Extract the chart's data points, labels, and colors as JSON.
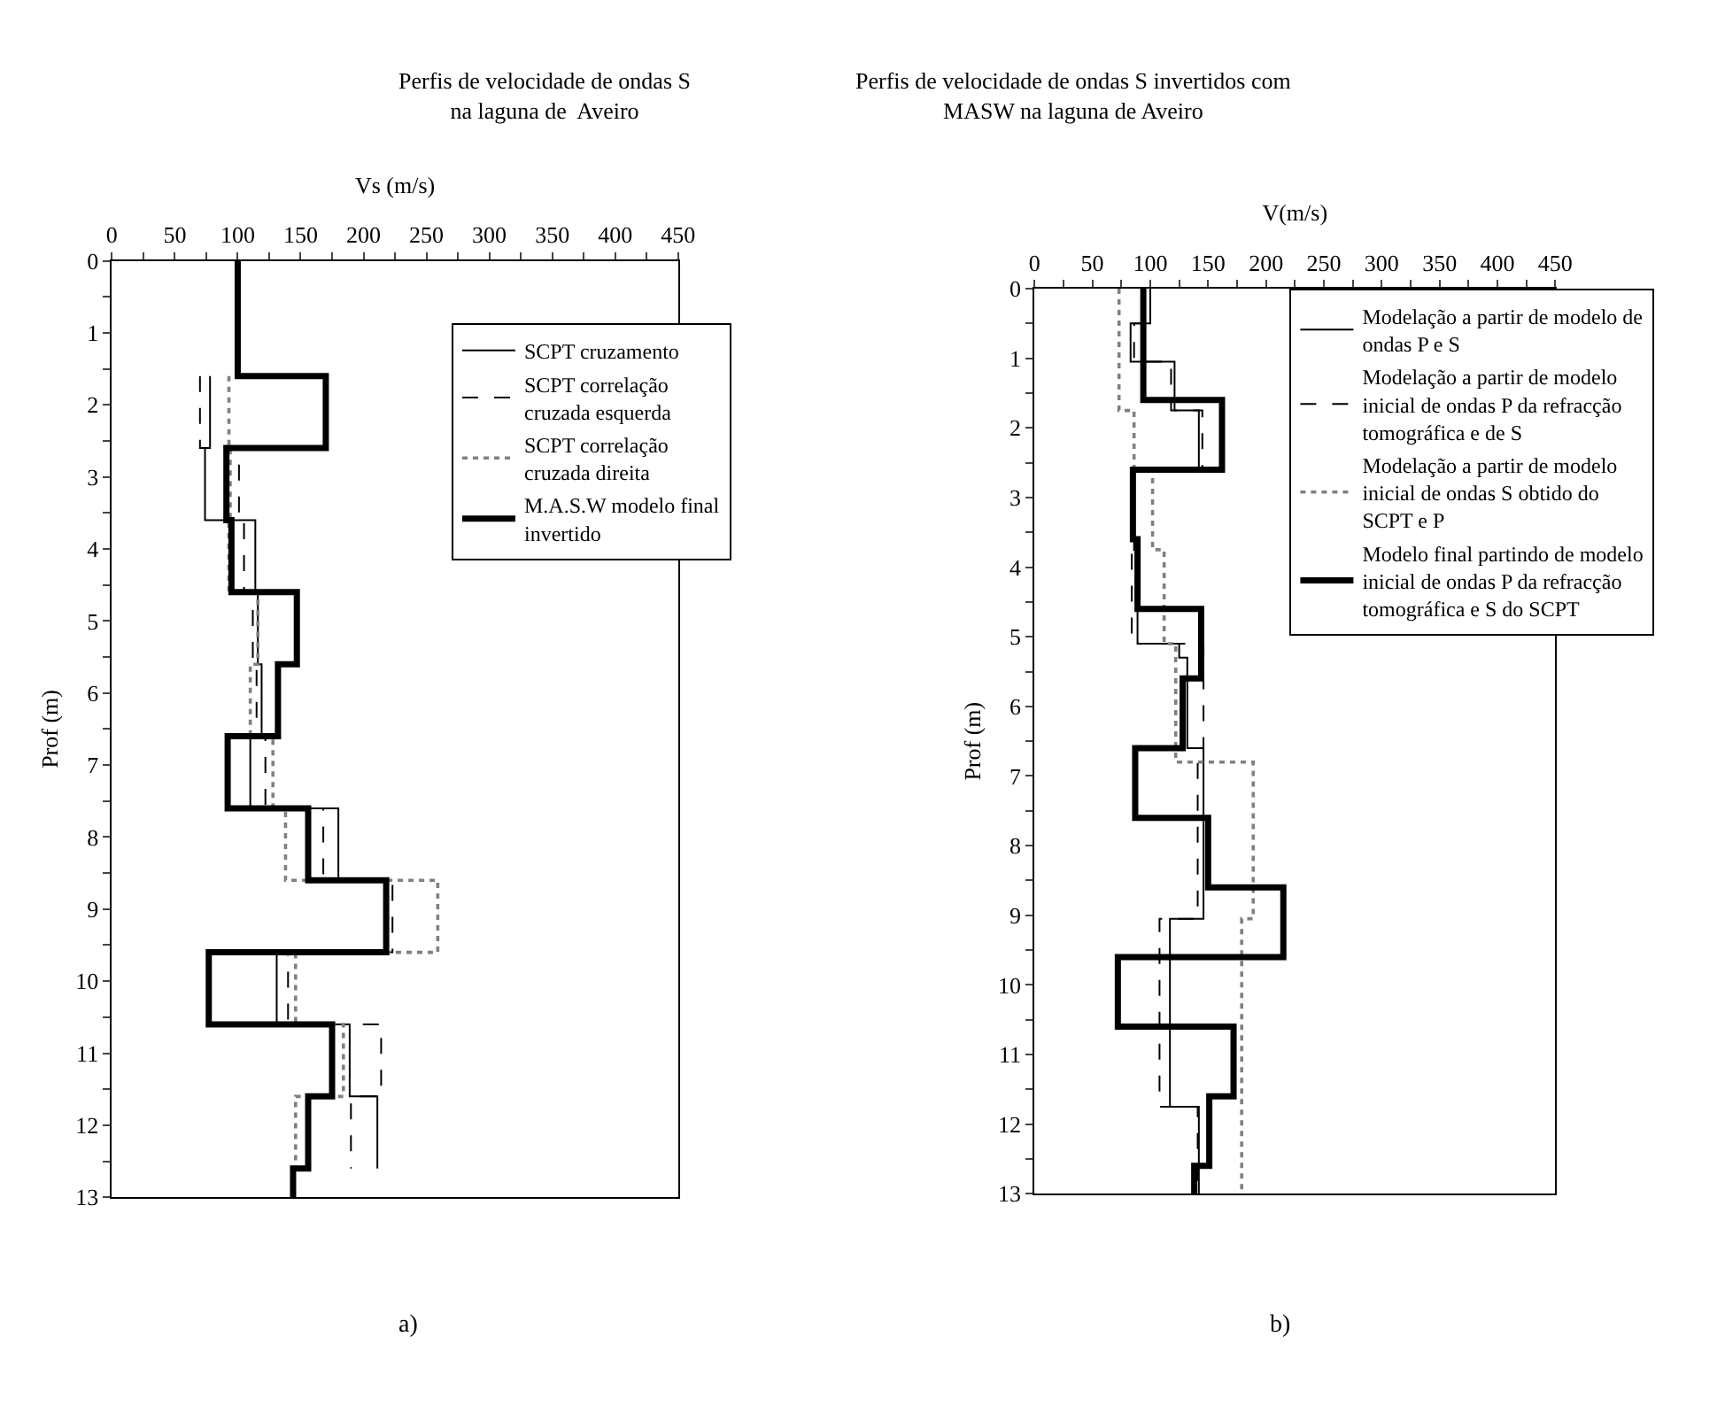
{
  "chart_data": [
    {
      "type": "line",
      "title": "Perfis de velocidade de ondas S na laguna de  Aveiro",
      "xlabel": "Vs (m/s)",
      "ylabel": "Prof (m)",
      "annotations": [
        "a)"
      ],
      "xlim": [
        0,
        450
      ],
      "ylim": [
        13,
        0
      ],
      "legend": "top right",
      "marker": "none",
      "xticks": [
        0,
        {
          "value": 25,
          "label": null
        },
        50,
        {
          "value": 75,
          "label": null
        },
        100,
        {
          "value": 125,
          "label": null
        },
        150,
        {
          "value": 175,
          "label": null
        },
        200,
        {
          "value": 225,
          "label": null
        },
        250,
        {
          "value": 275,
          "label": null
        },
        300,
        {
          "value": 325,
          "label": null
        },
        350,
        {
          "value": 375,
          "label": null
        },
        400,
        {
          "value": 425,
          "label": null
        },
        450
      ],
      "yticks": [
        0,
        {
          "value": 0.5,
          "label": null
        },
        1,
        {
          "value": 1.5,
          "label": null
        },
        2,
        {
          "value": 2.5,
          "label": null
        },
        3,
        {
          "value": 3.5,
          "label": null
        },
        4,
        {
          "value": 4.5,
          "label": null
        },
        5,
        {
          "value": 5.5,
          "label": null
        },
        6,
        {
          "value": 6.5,
          "label": null
        },
        7,
        {
          "value": 7.5,
          "label": null
        },
        8,
        {
          "value": 8.5,
          "label": null
        },
        9,
        {
          "value": 9.5,
          "label": null
        },
        10,
        {
          "value": 10.5,
          "label": null
        },
        11,
        {
          "value": 11.5,
          "label": null
        },
        12,
        {
          "value": 12.5,
          "label": null
        },
        13
      ],
      "series": [
        {
          "name": "SCPT cruzamento",
          "color": "#000000",
          "line_style": "solid",
          "x": [
            78,
            78,
            74,
            74,
            114,
            114,
            116,
            116,
            119,
            119,
            110,
            110,
            180,
            180,
            217,
            217,
            131,
            131,
            189,
            189,
            211,
            211
          ],
          "values": [
            1.6,
            2.6,
            2.6,
            3.6,
            3.6,
            4.6,
            4.6,
            5.6,
            5.6,
            6.6,
            6.6,
            7.6,
            7.6,
            8.6,
            8.6,
            9.6,
            9.6,
            10.6,
            10.6,
            11.6,
            11.6,
            12.6
          ]
        },
        {
          "name": "SCPT correlação cruzada esquerda",
          "color": "#000000",
          "line_style": "dashed",
          "x": [
            70,
            70,
            101,
            101,
            105,
            105,
            112,
            112,
            115,
            115,
            122,
            122,
            168,
            168,
            223,
            223,
            140,
            140,
            214,
            214,
            190,
            190
          ],
          "values": [
            1.6,
            2.6,
            2.6,
            3.6,
            3.6,
            4.6,
            4.6,
            5.6,
            5.6,
            6.6,
            6.6,
            7.6,
            7.6,
            8.6,
            8.6,
            9.6,
            9.6,
            10.6,
            10.6,
            11.6,
            11.6,
            12.6
          ]
        },
        {
          "name": "SCPT correlação cruzada direita",
          "color": "#808080",
          "line_style": "dotted",
          "x": [
            93,
            93,
            94,
            94,
            93,
            93,
            116,
            116,
            110,
            110,
            128,
            128,
            138,
            138,
            259,
            259,
            146,
            146,
            184,
            184,
            146,
            146
          ],
          "values": [
            1.6,
            2.6,
            2.6,
            3.6,
            3.6,
            4.6,
            4.6,
            5.6,
            5.6,
            6.6,
            6.6,
            7.6,
            7.6,
            8.6,
            8.6,
            9.6,
            9.6,
            10.6,
            10.6,
            11.6,
            11.6,
            12.6
          ]
        },
        {
          "name": "M.A.S.W modelo final invertido",
          "color": "#000000",
          "line_style": "solid",
          "x": [
            100,
            100,
            170,
            170,
            91,
            91,
            95,
            95,
            147,
            147,
            132,
            132,
            92,
            92,
            156,
            156,
            218,
            218,
            77,
            77,
            175,
            175,
            156,
            156,
            144,
            144
          ],
          "values": [
            0,
            1.6,
            1.6,
            2.6,
            2.6,
            3.6,
            3.6,
            4.6,
            4.6,
            5.6,
            5.6,
            6.6,
            6.6,
            7.6,
            7.6,
            8.6,
            8.6,
            9.6,
            9.6,
            10.6,
            10.6,
            11.6,
            11.6,
            12.6,
            12.6,
            13
          ]
        }
      ]
    },
    {
      "type": "line",
      "title": "Perfis de velocidade de ondas S invertidos com MASW na laguna de Aveiro",
      "xlabel": "V(m/s)",
      "ylabel": "Prof (m)",
      "annotations": [
        "b)"
      ],
      "xlim": [
        0,
        450
      ],
      "ylim": [
        13,
        0
      ],
      "legend": "right",
      "marker": "none",
      "xticks": [
        0,
        {
          "value": 25,
          "label": null
        },
        50,
        {
          "value": 75,
          "label": null
        },
        100,
        {
          "value": 125,
          "label": null
        },
        150,
        {
          "value": 175,
          "label": null
        },
        200,
        {
          "value": 225,
          "label": null
        },
        250,
        {
          "value": 275,
          "label": null
        },
        300,
        {
          "value": 325,
          "label": null
        },
        350,
        {
          "value": 375,
          "label": null
        },
        400,
        {
          "value": 425,
          "label": null
        },
        450
      ],
      "yticks": [
        0,
        {
          "value": 0.5,
          "label": null
        },
        1,
        {
          "value": 1.5,
          "label": null
        },
        2,
        {
          "value": 2.5,
          "label": null
        },
        3,
        {
          "value": 3.5,
          "label": null
        },
        4,
        {
          "value": 4.5,
          "label": null
        },
        5,
        {
          "value": 5.5,
          "label": null
        },
        6,
        {
          "value": 6.5,
          "label": null
        },
        7,
        {
          "value": 7.5,
          "label": null
        },
        8,
        {
          "value": 8.5,
          "label": null
        },
        9,
        {
          "value": 9.5,
          "label": null
        },
        10,
        {
          "value": 10.5,
          "label": null
        },
        11,
        {
          "value": 11.5,
          "label": null
        },
        12,
        {
          "value": 12.5,
          "label": null
        },
        13
      ],
      "series": [
        {
          "name": "Modelação a partir de modelo de ondas P e S",
          "color": "#000000",
          "line_style": "solid",
          "x": [
            100,
            100,
            83,
            83,
            121,
            121,
            142,
            142,
            86,
            86,
            89,
            89,
            125,
            125,
            132,
            132,
            146,
            146,
            117,
            117,
            142,
            142
          ],
          "values": [
            0,
            0.5,
            0.5,
            1.05,
            1.05,
            1.75,
            1.75,
            2.6,
            2.6,
            3.75,
            3.75,
            5.1,
            5.1,
            5.3,
            5.3,
            6.6,
            6.6,
            9.05,
            9.05,
            11.75,
            11.75,
            13
          ]
        },
        {
          "name": "Modelação a partir de modelo inicial de ondas P da refracção tomográfica e de S",
          "color": "#000000",
          "line_style": "dashed",
          "x": [
            95,
            95,
            86,
            86,
            118,
            118,
            145,
            145,
            86,
            86,
            84,
            84,
            146,
            146,
            141,
            141,
            108,
            108,
            141,
            141
          ],
          "values": [
            0,
            0.5,
            0.5,
            1.05,
            1.05,
            1.75,
            1.75,
            2.6,
            2.6,
            3.75,
            3.75,
            5.1,
            5.1,
            6.8,
            6.8,
            9.05,
            9.05,
            11.75,
            11.75,
            13
          ]
        },
        {
          "name": "Modelação a partir de modelo inicial de ondas S obtido do SCPT e P",
          "color": "#808080",
          "line_style": "dotted",
          "x": [
            73,
            73,
            86,
            86,
            102,
            102,
            112,
            112,
            122,
            122,
            189,
            189,
            179,
            179
          ],
          "values": [
            0,
            1.75,
            1.75,
            2.6,
            2.6,
            3.75,
            3.75,
            5.1,
            5.1,
            6.8,
            6.8,
            9.05,
            9.05,
            13
          ]
        },
        {
          "name": "Modelo final partindo de modelo inicial de ondas P da refracção tomográfica e S do SCPT",
          "color": "#000000",
          "line_style": "solid",
          "x": [
            94,
            94,
            162,
            162,
            85,
            85,
            89,
            89,
            144,
            144,
            128,
            128,
            87,
            87,
            150,
            150,
            215,
            215,
            72,
            72,
            172,
            172,
            151,
            151,
            138,
            138
          ],
          "values": [
            0,
            1.6,
            1.6,
            2.6,
            2.6,
            3.6,
            3.6,
            4.6,
            4.6,
            5.6,
            5.6,
            6.6,
            6.6,
            7.6,
            7.6,
            8.6,
            8.6,
            9.6,
            9.6,
            10.6,
            10.6,
            11.6,
            11.6,
            12.6,
            12.6,
            13
          ]
        }
      ]
    }
  ]
}
